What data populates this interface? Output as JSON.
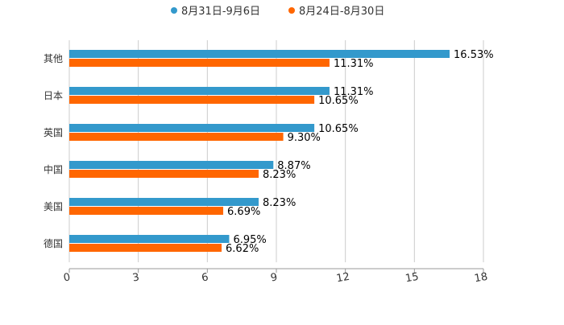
{
  "chart_data": {
    "type": "bar",
    "orientation": "horizontal",
    "title": "",
    "xlabel": "",
    "ylabel": "",
    "xlim": [
      0,
      18
    ],
    "xticks": [
      "0",
      "3",
      "6",
      "9",
      "12",
      "15",
      "18"
    ],
    "grid": true,
    "legend_placement": "top-center",
    "categories": [
      "其他",
      "日本",
      "英国",
      "中国",
      "美国",
      "德国"
    ],
    "series": [
      {
        "name": "8月31日-9月6日",
        "color": "#3399cc",
        "values": [
          16.53,
          11.31,
          10.65,
          8.87,
          8.23,
          6.95
        ],
        "labels": [
          "16.53%",
          "11.31%",
          "10.65%",
          "8.87%",
          "8.23%",
          "6.95%"
        ]
      },
      {
        "name": "8月24日-8月30日",
        "color": "#ff6600",
        "values": [
          11.31,
          10.65,
          9.3,
          8.23,
          6.69,
          6.62
        ],
        "labels": [
          "11.31%",
          "10.65%",
          "9.30%",
          "8.23%",
          "6.69%",
          "6.62%"
        ]
      }
    ]
  }
}
